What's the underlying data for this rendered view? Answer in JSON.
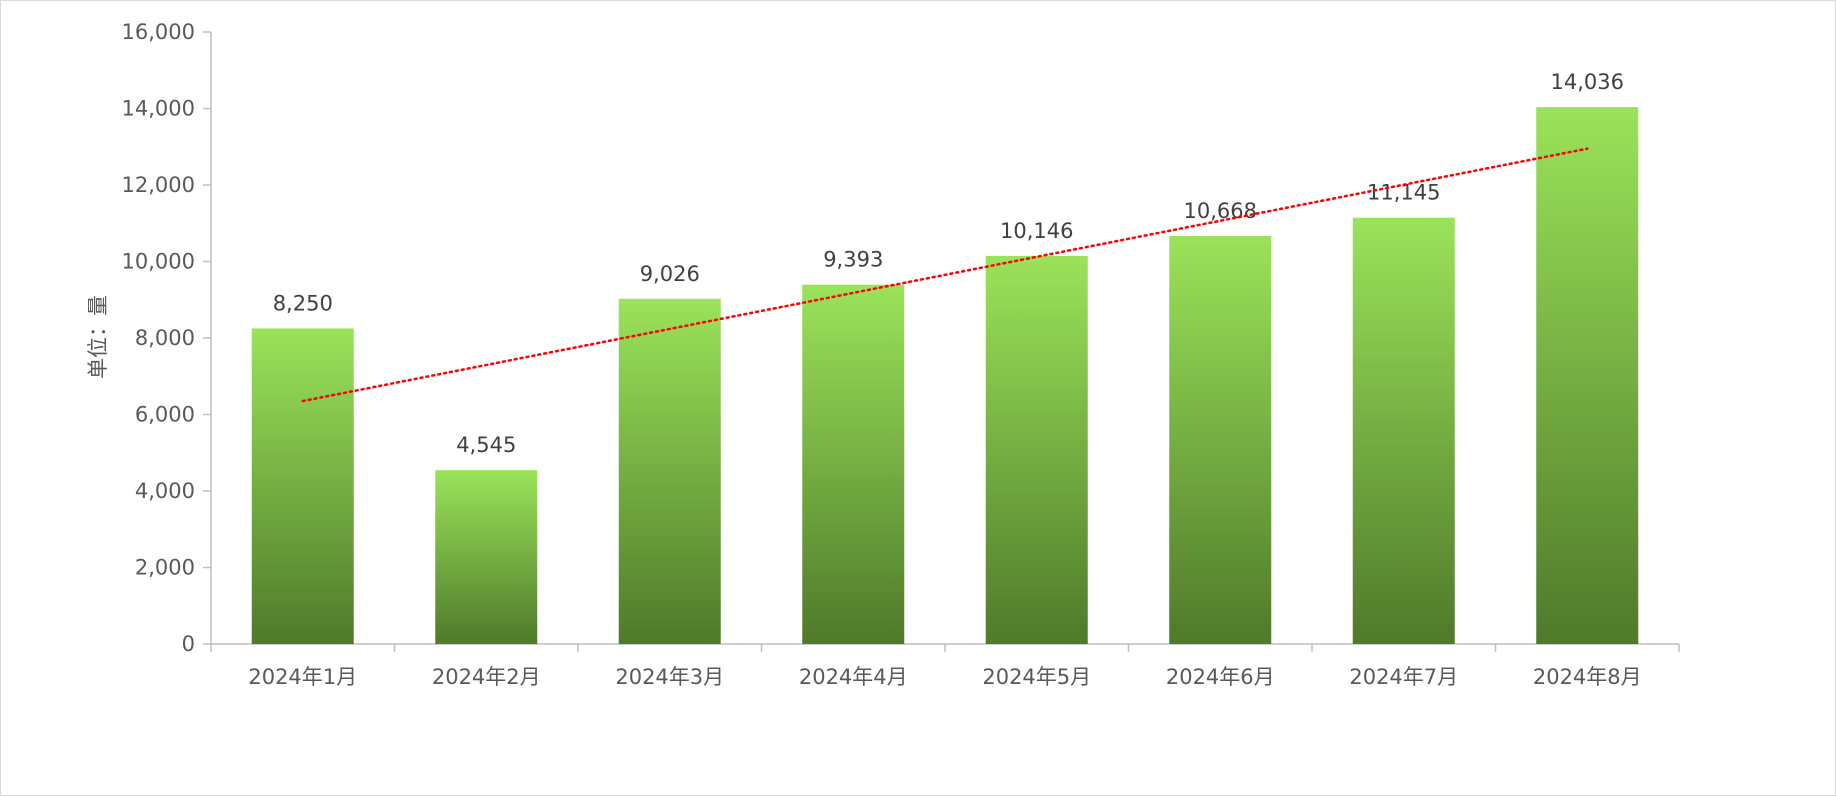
{
  "chart_data": {
    "type": "bar",
    "categories": [
      "2024年1月",
      "2024年2月",
      "2024年3月",
      "2024年4月",
      "2024年5月",
      "2024年6月",
      "2024年7月",
      "2024年8月"
    ],
    "values": [
      8250,
      4545,
      9026,
      9393,
      10146,
      10668,
      11145,
      14036
    ],
    "data_labels": [
      "8,250",
      "4,545",
      "9,026",
      "9,393",
      "10,146",
      "10,668",
      "11,145",
      "14,036"
    ],
    "ylabel": "单位：量",
    "xlabel": "",
    "title": "",
    "ylim": [
      0,
      16000
    ],
    "yticks": [
      0,
      2000,
      4000,
      6000,
      8000,
      10000,
      12000,
      14000,
      16000
    ],
    "ytick_labels": [
      "0",
      "2,000",
      "4,000",
      "6,000",
      "8,000",
      "10,000",
      "12,000",
      "14,000",
      "16,000"
    ],
    "trendline": {
      "type": "linear",
      "style": "dotted",
      "color": "#ff0000"
    },
    "bar_gradient": {
      "top": "#9be35a",
      "bottom": "#4f7a2a"
    },
    "grid": false,
    "legend": "none"
  }
}
